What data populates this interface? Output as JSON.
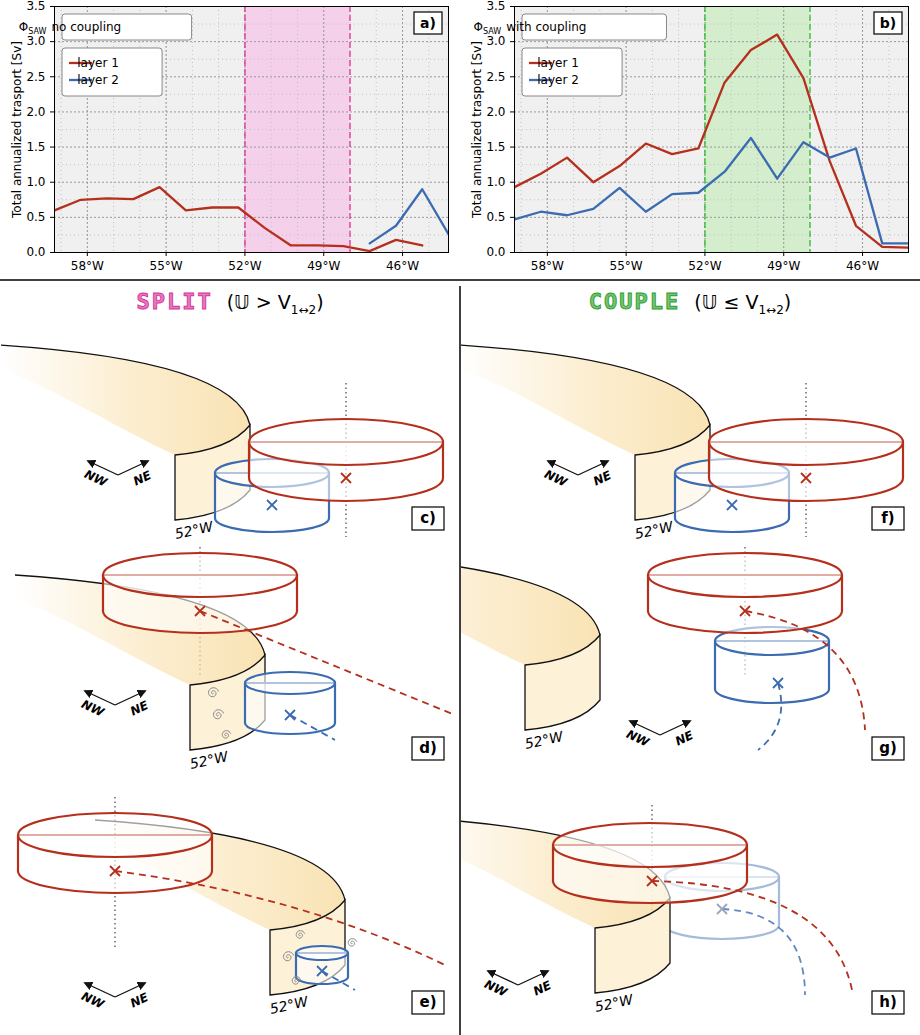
{
  "chart_data": [
    {
      "type": "line",
      "panel_label": "a)",
      "annotation": {
        "symbol": "Φ",
        "subscript": "SAW",
        "text": "no coupling"
      },
      "x": [
        -59.25,
        -58.25,
        -57.25,
        -56.25,
        -55.25,
        -54.25,
        -53.25,
        -52.25,
        -51.25,
        -50.25,
        -49.25,
        -48.25,
        -47.25,
        -46.25,
        -45.25,
        -44.25
      ],
      "series": [
        {
          "name": "layer 1",
          "color": "#b5301c",
          "values": [
            0.6,
            0.75,
            0.77,
            0.76,
            0.93,
            0.6,
            0.64,
            0.64,
            0.35,
            0.1,
            0.1,
            0.09,
            0.02,
            0.18,
            0.1,
            null
          ]
        },
        {
          "name": "layer 2",
          "color": "#3b6bb0",
          "values": [
            null,
            null,
            null,
            null,
            null,
            null,
            null,
            null,
            null,
            null,
            null,
            null,
            0.13,
            0.38,
            0.9,
            0.26
          ]
        }
      ],
      "xlim": [
        -59.25,
        -44.25
      ],
      "xticks": [
        {
          "value": -58,
          "label": "58°W"
        },
        {
          "value": -55,
          "label": "55°W"
        },
        {
          "value": -52,
          "label": "52°W"
        },
        {
          "value": -49,
          "label": "49°W"
        },
        {
          "value": -46,
          "label": "46°W"
        }
      ],
      "ylim": [
        0,
        3.5
      ],
      "yticks": [
        {
          "value": 0,
          "label": "0.0"
        },
        0.5,
        {
          "value": 1,
          "label": "1.0"
        },
        1.5,
        {
          "value": 2,
          "label": "2.0"
        },
        2.5,
        {
          "value": 3,
          "label": "3.0"
        },
        3.5
      ],
      "ylabel": "Total annualized trasport [Sv]",
      "grid": true,
      "legend": "upper left",
      "highlight": {
        "range": [
          -52,
          -48
        ],
        "color": "#f6c6e8",
        "edge_color": "#e23c9c"
      }
    },
    {
      "type": "line",
      "panel_label": "b)",
      "annotation": {
        "symbol": "Φ",
        "subscript": "SAW",
        "text": "with coupling"
      },
      "x": [
        -59.25,
        -58.25,
        -57.25,
        -56.25,
        -55.25,
        -54.25,
        -53.25,
        -52.25,
        -51.25,
        -50.25,
        -49.25,
        -48.25,
        -47.25,
        -46.25,
        -45.25,
        -44.25
      ],
      "series": [
        {
          "name": "layer 1",
          "color": "#b5301c",
          "values": [
            0.93,
            1.12,
            1.35,
            1.0,
            1.23,
            1.55,
            1.4,
            1.48,
            2.42,
            2.88,
            3.1,
            2.48,
            1.3,
            0.38,
            0.08,
            0.07
          ]
        },
        {
          "name": "layer 2",
          "color": "#3b6bb0",
          "values": [
            0.47,
            0.58,
            0.53,
            0.62,
            0.92,
            0.58,
            0.83,
            0.85,
            1.15,
            1.63,
            1.05,
            1.57,
            1.35,
            1.48,
            0.13,
            0.13
          ]
        }
      ],
      "xlim": [
        -59.25,
        -44.25
      ],
      "xticks": [
        {
          "value": -58,
          "label": "58°W"
        },
        {
          "value": -55,
          "label": "55°W"
        },
        {
          "value": -52,
          "label": "52°W"
        },
        {
          "value": -49,
          "label": "49°W"
        },
        {
          "value": -46,
          "label": "46°W"
        }
      ],
      "ylim": [
        0,
        3.5
      ],
      "yticks": [
        {
          "value": 0,
          "label": "0.0"
        },
        0.5,
        {
          "value": 1,
          "label": "1.0"
        },
        1.5,
        {
          "value": 2,
          "label": "2.0"
        },
        2.5,
        {
          "value": 3,
          "label": "3.0"
        },
        3.5
      ],
      "ylabel": "Total annualized trasport [Sv]",
      "grid": true,
      "legend": "upper left",
      "highlight": {
        "range": [
          -52,
          -48
        ],
        "color": "#c9ecc1",
        "edge_color": "#35c035"
      }
    }
  ],
  "diagram": {
    "columns": [
      {
        "name": "SPLIT",
        "condition": [
          "(𝕌 > V",
          "1↔2",
          ")"
        ],
        "color": "#d6339b",
        "panels": [
          "c)",
          "d)",
          "e)"
        ]
      },
      {
        "name": "COUPLE",
        "condition": [
          "(𝕌 ≤ V",
          "1↔2",
          ")"
        ],
        "color": "#2a9f2a",
        "panels": [
          "f)",
          "g)",
          "h)"
        ]
      }
    ],
    "compass": [
      "NW",
      "NE"
    ],
    "shelf_label": "52°W"
  }
}
